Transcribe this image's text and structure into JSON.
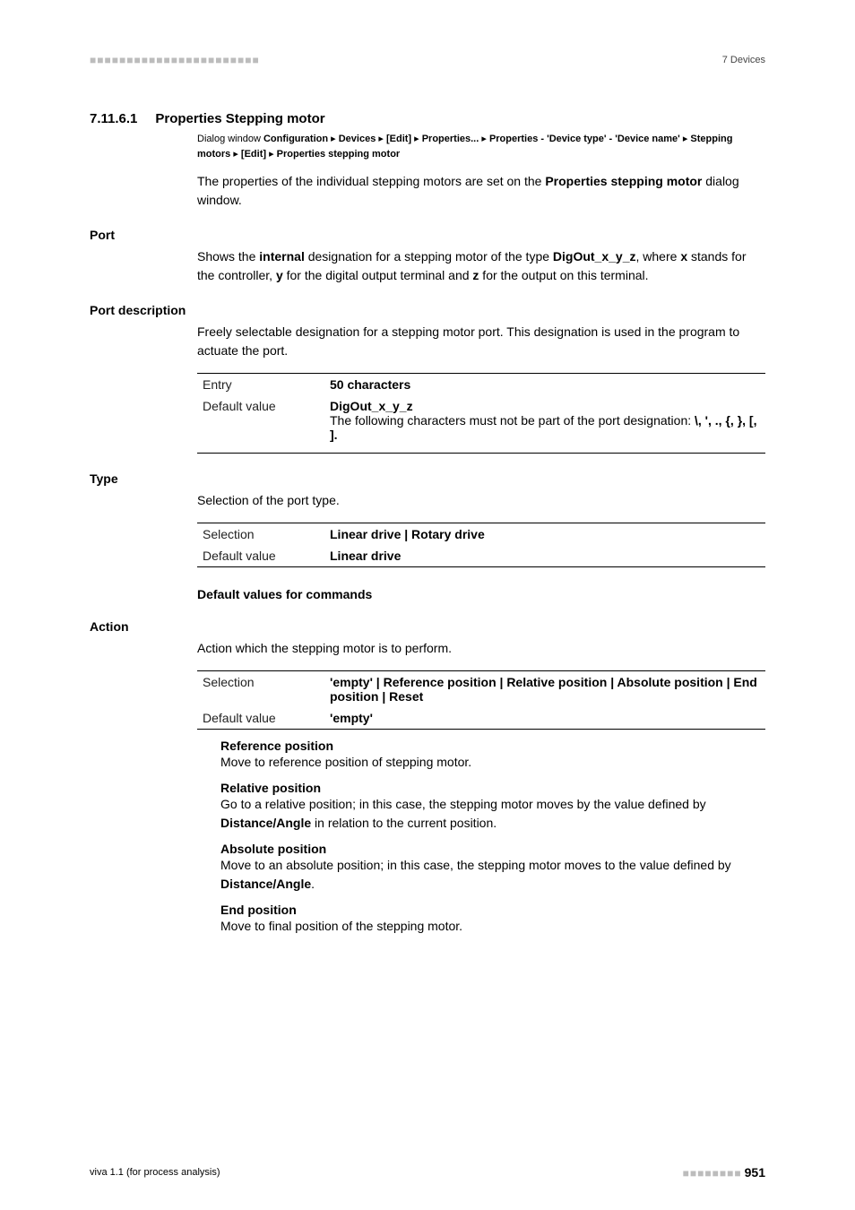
{
  "header": {
    "right": "7 Devices"
  },
  "section": {
    "num": "7.11.6.1",
    "title": "Properties Stepping motor",
    "breadcrumb_parts": [
      "Dialog window ",
      "Configuration",
      " ▸ ",
      "Devices",
      " ▸ ",
      "[Edit]",
      " ▸ ",
      "Properties...",
      " ▸ ",
      "Properties - 'Device type' - 'Device name'",
      " ▸ ",
      "Stepping motors",
      " ▸ ",
      "[Edit]",
      " ▸ ",
      "Properties stepping motor"
    ],
    "intro": "The properties of the individual stepping motors are set on the ",
    "intro_bold": "Properties stepping motor",
    "intro_tail": " dialog window."
  },
  "port": {
    "heading": "Port",
    "p1": "Shows the ",
    "p1_b1": "internal",
    "p2": " designation for a stepping motor of the type ",
    "p2_b2": "DigOut_x_y_z",
    "p3": ", where ",
    "p3_b3": "x",
    "p4": " stands for the controller, ",
    "p4_b4": "y",
    "p5": " for the digital output terminal and ",
    "p5_b5": "z",
    "p6": " for the output on this terminal."
  },
  "portdesc": {
    "heading": "Port description",
    "para": "Freely selectable designation for a stepping motor port. This designation is used in the program to actuate the port.",
    "entry_label": "Entry",
    "entry_value": "50 characters",
    "default_label": "Default value",
    "default_value": "DigOut_x_y_z",
    "note1": "The following characters must not be part of the port designation: ",
    "note_symbols": "\\, ', ., {, }, [, ]."
  },
  "type": {
    "heading": "Type",
    "para": "Selection of the port type.",
    "sel_label": "Selection",
    "sel_value": "Linear drive | Rotary drive",
    "def_label": "Default value",
    "def_value": "Linear drive"
  },
  "defaults": {
    "title": "Default values for commands"
  },
  "action": {
    "heading": "Action",
    "para": "Action which the stepping motor is to perform.",
    "sel_label": "Selection",
    "sel_value": "'empty' | Reference position | Relative position | Absolute position | End position | Reset",
    "def_label": "Default value",
    "def_value": "'empty'",
    "opts": [
      {
        "name": "Reference position",
        "desc": "Move to reference position of stepping motor."
      },
      {
        "name": "Relative position",
        "desc_pre": "Go to a relative position; in this case, the stepping motor moves by the value defined by ",
        "desc_bold": "Distance/Angle",
        "desc_post": " in relation to the current position."
      },
      {
        "name": "Absolute position",
        "desc_pre": "Move to an absolute position; in this case, the stepping motor moves to the value defined by ",
        "desc_bold": "Distance/Angle",
        "desc_post": "."
      },
      {
        "name": "End position",
        "desc": "Move to final position of the stepping motor."
      }
    ]
  },
  "footer": {
    "left": "viva 1.1 (for process analysis)",
    "page": "951"
  }
}
